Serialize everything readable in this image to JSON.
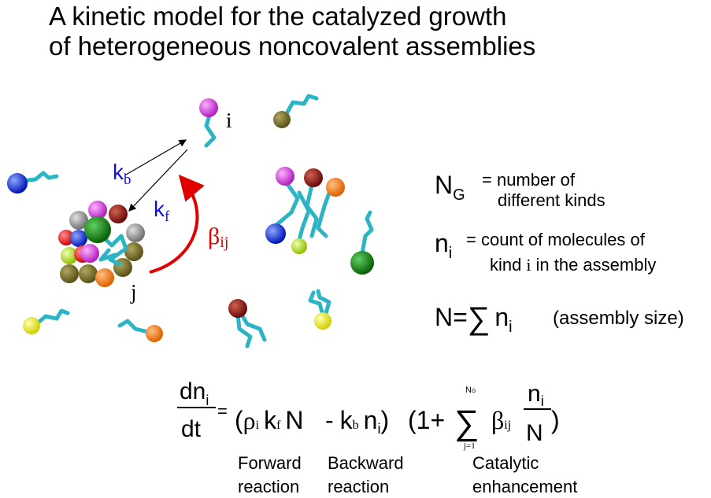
{
  "title": [
    "A kinetic model for the catalyzed growth",
    "of heterogeneous noncovalent assemblies"
  ],
  "diagram": {
    "monomer_label": "i",
    "assembly_label": "j",
    "kb": {
      "base": "k",
      "sub": "b"
    },
    "kf": {
      "base": "k",
      "sub": "f"
    },
    "beta": {
      "base": "β",
      "sub": "ij"
    }
  },
  "definitions": [
    {
      "symbol": "N",
      "sub": "G",
      "text": [
        "= number of",
        "different kinds"
      ]
    },
    {
      "symbol": "n",
      "sub": "i",
      "text": [
        "= count of molecules of",
        "kind",
        "i",
        "in the assembly"
      ]
    },
    {
      "symbol": "N=",
      "sum": "∑",
      "term": "n",
      "sub": "i",
      "note": "(assembly size)"
    }
  ],
  "equation": {
    "lhs": {
      "num": "dn",
      "num_sub": "i",
      "den": "dt",
      "eq": "="
    },
    "forward": {
      "open": "(",
      "rho": "ρ",
      "rho_sub": "i",
      "k": "k",
      "k_sub": "f",
      "n": "N"
    },
    "backward": {
      "minus": "-",
      "k": "k",
      "k_sub": "b",
      "n": "n",
      "n_sub": "i",
      "close": ")"
    },
    "catalytic": {
      "open": "(1+",
      "sum": "∑",
      "upper": "N",
      "upper_sub": "G",
      "lower": "j=1",
      "beta": "β",
      "beta_sub": "ij",
      "frac_num": "n",
      "frac_num_sub": "i",
      "frac_den": "N",
      "close": ")"
    }
  },
  "annotations": [
    [
      "Forward",
      "reaction"
    ],
    [
      "Backward",
      "reaction"
    ],
    [
      "Catalytic",
      "enhancement"
    ]
  ]
}
